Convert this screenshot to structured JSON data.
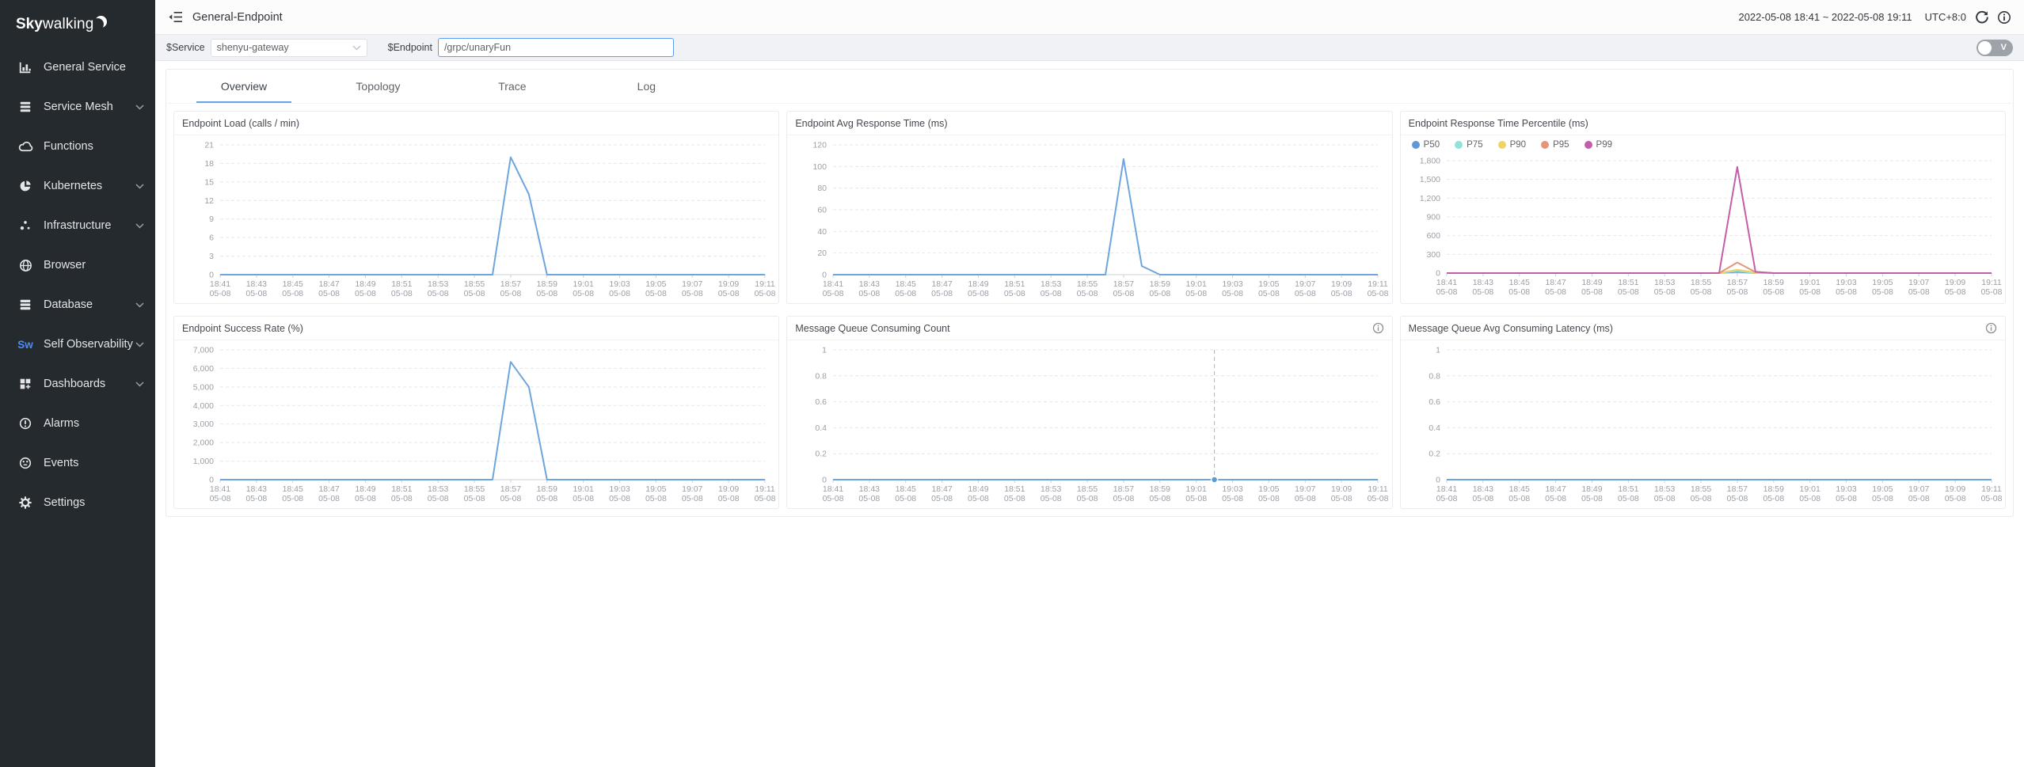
{
  "sidebar": {
    "logo_bold": "Sky",
    "logo_rest": "walking",
    "items": [
      {
        "label": "General Service",
        "icon": "bar-chart-icon",
        "chevron": false
      },
      {
        "label": "Service Mesh",
        "icon": "layers-icon",
        "chevron": true
      },
      {
        "label": "Functions",
        "icon": "cloud-icon",
        "chevron": false
      },
      {
        "label": "Kubernetes",
        "icon": "pie-wheel-icon",
        "chevron": true
      },
      {
        "label": "Infrastructure",
        "icon": "dots-icon",
        "chevron": true
      },
      {
        "label": "Browser",
        "icon": "globe-icon",
        "chevron": false
      },
      {
        "label": "Database",
        "icon": "database-icon",
        "chevron": true
      },
      {
        "label": "Self Observability",
        "icon": "sw-icon",
        "chevron": true
      },
      {
        "label": "Dashboards",
        "icon": "grid-plus-icon",
        "chevron": true
      },
      {
        "label": "Alarms",
        "icon": "alarm-icon",
        "chevron": false
      },
      {
        "label": "Events",
        "icon": "events-icon",
        "chevron": false
      },
      {
        "label": "Settings",
        "icon": "gear-icon",
        "chevron": false
      }
    ],
    "sw_icon_text": "Sw"
  },
  "header": {
    "title": "General-Endpoint",
    "time_range": "2022-05-08 18:41 ~ 2022-05-08 19:11",
    "timezone": "UTC+8:0"
  },
  "filter_bar": {
    "service_label": "$Service",
    "service_value": "shenyu-gateway",
    "endpoint_label": "$Endpoint",
    "endpoint_value": "/grpc/unaryFun",
    "toggle_label": "V"
  },
  "tabs": [
    {
      "label": "Overview",
      "active": true
    },
    {
      "label": "Topology",
      "active": false
    },
    {
      "label": "Trace",
      "active": false
    },
    {
      "label": "Log",
      "active": false
    }
  ],
  "colors": {
    "sidebar_bg": "#252a2f",
    "accent_blue": "#6ca2e6",
    "line_blue": "#6ea5dd",
    "focus_border": "#5b9ef5",
    "sw_brand_blue": "#4a8df8"
  },
  "chart_data": [
    {
      "type": "line",
      "title": "Endpoint Load (calls / min)",
      "points": 31,
      "x_labels": [
        "18:41",
        "18:43",
        "18:45",
        "18:47",
        "18:49",
        "18:51",
        "18:53",
        "18:55",
        "18:57",
        "18:59",
        "19:01",
        "19:03",
        "19:05",
        "19:07",
        "19:09",
        "19:11"
      ],
      "x_sub_label": "05-08",
      "ylim": [
        0,
        21
      ],
      "yticks": [
        0,
        3,
        6,
        9,
        12,
        15,
        18,
        21
      ],
      "crosshair_index": null,
      "info_icon": false,
      "series": [
        {
          "name": "load",
          "color": "#6ea5dd",
          "values": [
            0,
            0,
            0,
            0,
            0,
            0,
            0,
            0,
            0,
            0,
            0,
            0,
            0,
            0,
            0,
            0,
            19,
            13,
            0,
            0,
            0,
            0,
            0,
            0,
            0,
            0,
            0,
            0,
            0,
            0,
            0
          ]
        }
      ]
    },
    {
      "type": "line",
      "title": "Endpoint Avg Response Time (ms)",
      "points": 31,
      "x_labels": [
        "18:41",
        "18:43",
        "18:45",
        "18:47",
        "18:49",
        "18:51",
        "18:53",
        "18:55",
        "18:57",
        "18:59",
        "19:01",
        "19:03",
        "19:05",
        "19:07",
        "19:09",
        "19:11"
      ],
      "x_sub_label": "05-08",
      "ylim": [
        0,
        120
      ],
      "yticks": [
        0,
        20,
        40,
        60,
        80,
        100,
        120
      ],
      "crosshair_index": null,
      "info_icon": false,
      "series": [
        {
          "name": "avg-response-time",
          "color": "#6ea5dd",
          "values": [
            0,
            0,
            0,
            0,
            0,
            0,
            0,
            0,
            0,
            0,
            0,
            0,
            0,
            0,
            0,
            0,
            107,
            8,
            0,
            0,
            0,
            0,
            0,
            0,
            0,
            0,
            0,
            0,
            0,
            0,
            0
          ]
        }
      ]
    },
    {
      "type": "line",
      "title": "Endpoint Response Time Percentile (ms)",
      "points": 31,
      "x_labels": [
        "18:41",
        "18:43",
        "18:45",
        "18:47",
        "18:49",
        "18:51",
        "18:53",
        "18:55",
        "18:57",
        "18:59",
        "19:01",
        "19:03",
        "19:05",
        "19:07",
        "19:09",
        "19:11"
      ],
      "x_sub_label": "05-08",
      "ylim": [
        0,
        1800
      ],
      "yticks": [
        0,
        300,
        600,
        900,
        1200,
        1500,
        1800
      ],
      "crosshair_index": null,
      "info_icon": false,
      "legend_position": "top",
      "series": [
        {
          "name": "P50",
          "color": "#6197d7",
          "values": [
            0,
            0,
            0,
            0,
            0,
            0,
            0,
            0,
            0,
            0,
            0,
            0,
            0,
            0,
            0,
            0,
            20,
            0,
            0,
            0,
            0,
            0,
            0,
            0,
            0,
            0,
            0,
            0,
            0,
            0,
            0
          ]
        },
        {
          "name": "P75",
          "color": "#93e1dc",
          "values": [
            0,
            0,
            0,
            0,
            0,
            0,
            0,
            0,
            0,
            0,
            0,
            0,
            0,
            0,
            0,
            0,
            35,
            0,
            0,
            0,
            0,
            0,
            0,
            0,
            0,
            0,
            0,
            0,
            0,
            0,
            0
          ]
        },
        {
          "name": "P90",
          "color": "#eed465",
          "values": [
            0,
            0,
            0,
            0,
            0,
            0,
            0,
            0,
            0,
            0,
            0,
            0,
            0,
            0,
            0,
            0,
            55,
            10,
            0,
            0,
            0,
            0,
            0,
            0,
            0,
            0,
            0,
            0,
            0,
            0,
            0
          ]
        },
        {
          "name": "P95",
          "color": "#e5957a",
          "values": [
            0,
            0,
            0,
            0,
            0,
            0,
            0,
            0,
            0,
            0,
            0,
            0,
            0,
            0,
            0,
            0,
            170,
            15,
            0,
            0,
            0,
            0,
            0,
            0,
            0,
            0,
            0,
            0,
            0,
            0,
            0
          ]
        },
        {
          "name": "P99",
          "color": "#c45eaa",
          "values": [
            0,
            0,
            0,
            0,
            0,
            0,
            0,
            0,
            0,
            0,
            0,
            0,
            0,
            0,
            0,
            0,
            1700,
            20,
            0,
            0,
            0,
            0,
            0,
            0,
            0,
            0,
            0,
            0,
            0,
            0,
            0
          ]
        }
      ]
    },
    {
      "type": "line",
      "title": "Endpoint Success Rate (%)",
      "points": 31,
      "x_labels": [
        "18:41",
        "18:43",
        "18:45",
        "18:47",
        "18:49",
        "18:51",
        "18:53",
        "18:55",
        "18:57",
        "18:59",
        "19:01",
        "19:03",
        "19:05",
        "19:07",
        "19:09",
        "19:11"
      ],
      "x_sub_label": "05-08",
      "ylim": [
        0,
        7000
      ],
      "yticks": [
        0,
        1000,
        2000,
        3000,
        4000,
        5000,
        6000,
        7000
      ],
      "crosshair_index": null,
      "info_icon": false,
      "series": [
        {
          "name": "success-rate",
          "color": "#6ea5dd",
          "values": [
            0,
            0,
            0,
            0,
            0,
            0,
            0,
            0,
            0,
            0,
            0,
            0,
            0,
            0,
            0,
            0,
            6350,
            5000,
            0,
            0,
            0,
            0,
            0,
            0,
            0,
            0,
            0,
            0,
            0,
            0,
            0
          ]
        }
      ]
    },
    {
      "type": "line",
      "title": "Message Queue Consuming Count",
      "points": 31,
      "x_labels": [
        "18:41",
        "18:43",
        "18:45",
        "18:47",
        "18:49",
        "18:51",
        "18:53",
        "18:55",
        "18:57",
        "18:59",
        "19:01",
        "19:03",
        "19:05",
        "19:07",
        "19:09",
        "19:11"
      ],
      "x_sub_label": "05-08",
      "ylim": [
        0,
        1
      ],
      "yticks": [
        0,
        0.2,
        0.4,
        0.6,
        0.8,
        1
      ],
      "crosshair_index": 21,
      "info_icon": true,
      "series": [
        {
          "name": "consuming-count",
          "color": "#6ea5dd",
          "values": [
            0,
            0,
            0,
            0,
            0,
            0,
            0,
            0,
            0,
            0,
            0,
            0,
            0,
            0,
            0,
            0,
            0,
            0,
            0,
            0,
            0,
            0,
            0,
            0,
            0,
            0,
            0,
            0,
            0,
            0,
            0
          ]
        }
      ]
    },
    {
      "type": "line",
      "title": "Message Queue Avg Consuming Latency (ms)",
      "points": 31,
      "x_labels": [
        "18:41",
        "18:43",
        "18:45",
        "18:47",
        "18:49",
        "18:51",
        "18:53",
        "18:55",
        "18:57",
        "18:59",
        "19:01",
        "19:03",
        "19:05",
        "19:07",
        "19:09",
        "19:11"
      ],
      "x_sub_label": "05-08",
      "ylim": [
        0,
        1
      ],
      "yticks": [
        0,
        0.2,
        0.4,
        0.6,
        0.8,
        1
      ],
      "crosshair_index": null,
      "info_icon": true,
      "series": [
        {
          "name": "consuming-latency",
          "color": "#6ea5dd",
          "values": [
            0,
            0,
            0,
            0,
            0,
            0,
            0,
            0,
            0,
            0,
            0,
            0,
            0,
            0,
            0,
            0,
            0,
            0,
            0,
            0,
            0,
            0,
            0,
            0,
            0,
            0,
            0,
            0,
            0,
            0,
            0
          ]
        }
      ]
    }
  ]
}
